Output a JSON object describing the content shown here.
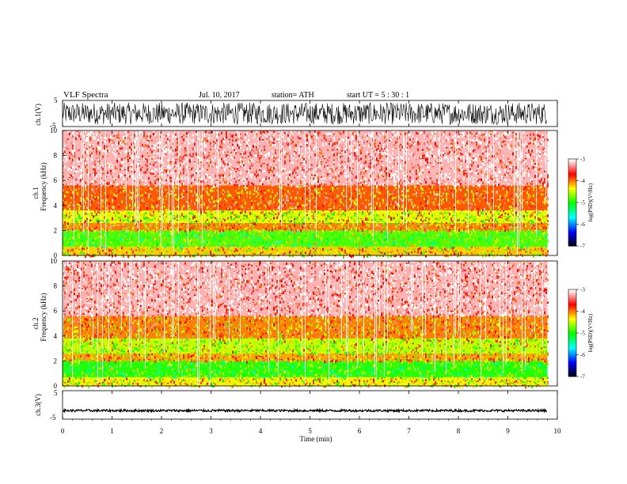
{
  "header": {
    "title": "VLF  Spectra",
    "date": "Jul.  10,  2017",
    "station": "station= ATH",
    "start": "start  UT  =    5  : 30 : 1"
  },
  "colors": {
    "axis": "#000000",
    "background": "#ffffff",
    "psd_scale": [
      "#000000",
      "#0000ff",
      "#00ffff",
      "#00ff00",
      "#ffff00",
      "#ff0000",
      "#ffffff"
    ]
  },
  "chart_data": [
    {
      "type": "line",
      "ylabel": "ch.1(V)",
      "ylim": [
        -5,
        5
      ],
      "yticks": [
        "5",
        "-5"
      ],
      "x_range_min": [
        0,
        9.8
      ],
      "series": [
        {
          "values": "dense broadband noise, amplitude ≈ ±4 V"
        }
      ]
    },
    {
      "type": "heatmap",
      "ylabel_channel": "ch.1",
      "ylabel": "Frequency  (kHz)",
      "ylim": [
        0,
        10
      ],
      "yticks": [
        "0",
        "2",
        "4",
        "6",
        "8",
        "10"
      ],
      "x_range_min": [
        0,
        9.8
      ],
      "bands_khz": [
        {
          "range": [
            0,
            0.7
          ],
          "level": -4.2
        },
        {
          "range": [
            0.7,
            2.0
          ],
          "level": -4.8
        },
        {
          "range": [
            2.0,
            2.6
          ],
          "level": -4.0
        },
        {
          "range": [
            2.6,
            3.6
          ],
          "level": -4.4
        },
        {
          "range": [
            3.6,
            5.6
          ],
          "level": -3.9
        },
        {
          "range": [
            5.6,
            10
          ],
          "level": -3.2
        }
      ],
      "colorbar": {
        "label": "log(PSD)(V²/Hz)",
        "ticks": [
          "-3",
          "-4",
          "-5",
          "-6",
          "-7"
        ],
        "range": [
          -7,
          -3
        ]
      }
    },
    {
      "type": "heatmap",
      "ylabel_channel": "ch.2",
      "ylabel": "Frequency  (kHz)",
      "ylim": [
        0,
        10
      ],
      "yticks": [
        "0",
        "2",
        "4",
        "6",
        "8",
        "10"
      ],
      "x_range_min": [
        0,
        9.8
      ],
      "bands_khz": [
        {
          "range": [
            0,
            0.7
          ],
          "level": -4.3
        },
        {
          "range": [
            0.7,
            2.0
          ],
          "level": -4.9
        },
        {
          "range": [
            2.0,
            2.6
          ],
          "level": -4.1
        },
        {
          "range": [
            2.6,
            3.8
          ],
          "level": -4.5
        },
        {
          "range": [
            3.8,
            5.6
          ],
          "level": -4.0
        },
        {
          "range": [
            5.6,
            10
          ],
          "level": -3.2
        }
      ],
      "colorbar": {
        "label": "log(PSD)(V²/Hz)",
        "ticks": [
          "-3",
          "-4",
          "-5",
          "-6",
          "-7"
        ],
        "range": [
          -7,
          -3
        ]
      }
    },
    {
      "type": "line",
      "ylabel": "ch.3(V)",
      "ylim": [
        -5,
        5
      ],
      "yticks": [
        "5",
        "-5"
      ],
      "x_range_min": [
        0,
        9.8
      ],
      "series": [
        {
          "values": "flat trace near -2 V with small noise"
        }
      ]
    }
  ],
  "xaxis": {
    "label": "Time  (min)",
    "ticks": [
      "0",
      "1",
      "2",
      "3",
      "4",
      "5",
      "6",
      "7",
      "8",
      "9",
      "10"
    ],
    "range": [
      0,
      10
    ]
  }
}
